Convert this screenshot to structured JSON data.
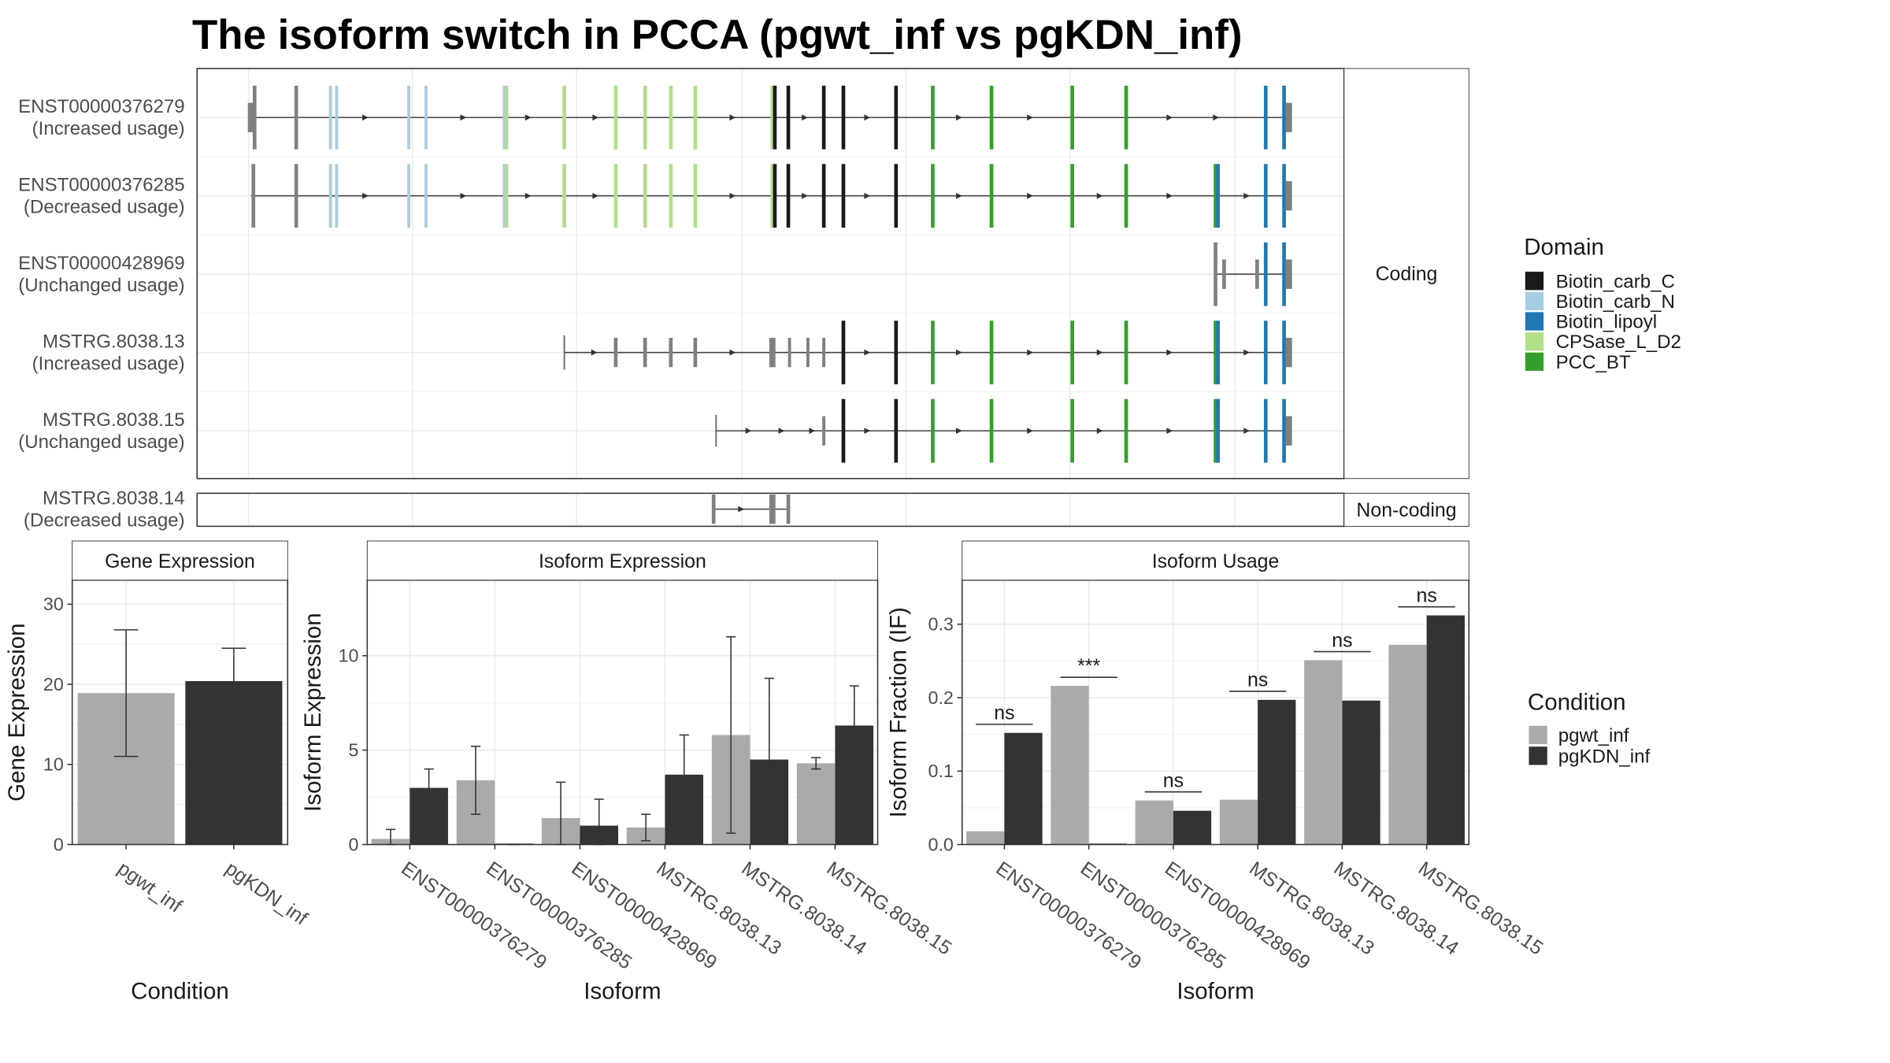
{
  "title": "The isoform switch in PCCA (pgwt_inf vs pgKDN_inf)",
  "colors": {
    "Biotin_carb_C": "#1a1a1a",
    "Biotin_carb_N": "#a6cee3",
    "Biotin_lipoyl": "#1f78b4",
    "CPSase_L_D2": "#b2df8a",
    "PCC_BT": "#33a02c",
    "noncoding_exon": "#808080",
    "pgwt_inf": "#aaaaaa",
    "pgKDN_inf": "#333333",
    "panel_border": "#333333",
    "strip_bg": "#ffffff",
    "grid": "#ebebeb"
  },
  "structure": {
    "facet_coding": "Coding",
    "facet_noncoding": "Non-coding",
    "domain_legend_title": "Domain",
    "domains": [
      "Biotin_carb_C",
      "Biotin_carb_N",
      "Biotin_lipoyl",
      "CPSase_L_D2",
      "PCC_BT"
    ],
    "isoforms": [
      {
        "id": "ENST00000376279",
        "usage": "(Increased usage)",
        "coding": true
      },
      {
        "id": "ENST00000376285",
        "usage": "(Decreased usage)",
        "coding": true
      },
      {
        "id": "ENST00000428969",
        "usage": "(Unchanged usage)",
        "coding": true
      },
      {
        "id": "MSTRG.8038.13",
        "usage": "(Increased usage)",
        "coding": true
      },
      {
        "id": "MSTRG.8038.15",
        "usage": "(Unchanged usage)",
        "coding": true
      },
      {
        "id": "MSTRG.8038.14",
        "usage": "(Decreased usage)",
        "coding": false
      }
    ]
  },
  "chart_data": [
    {
      "type": "bar",
      "title": "Gene Expression",
      "xlabel": "Condition",
      "ylabel": "Gene Expression",
      "categories": [
        "pgwt_inf",
        "pgKDN_inf"
      ],
      "values": [
        18.9,
        20.4
      ],
      "error_low": [
        11.0,
        16.3
      ],
      "error_high": [
        26.8,
        24.5
      ],
      "ylim": [
        0,
        33
      ],
      "yticks": [
        0,
        10,
        20,
        30
      ],
      "grid": true
    },
    {
      "type": "bar",
      "title": "Isoform Expression",
      "xlabel": "Isoform",
      "ylabel": "Isoform Expression",
      "categories": [
        "ENST00000376279",
        "ENST00000376285",
        "ENST00000428969",
        "MSTRG.8038.13",
        "MSTRG.8038.14",
        "MSTRG.8038.15"
      ],
      "series": [
        {
          "name": "pgwt_inf",
          "values": [
            0.3,
            3.4,
            1.4,
            0.9,
            5.8,
            4.3
          ],
          "error_low": [
            0.0,
            1.6,
            0.0,
            0.2,
            0.6,
            4.0
          ],
          "error_high": [
            0.8,
            5.2,
            3.3,
            1.6,
            11.0,
            4.6
          ]
        },
        {
          "name": "pgKDN_inf",
          "values": [
            3.0,
            0.0,
            1.0,
            3.7,
            4.5,
            6.3
          ],
          "error_low": [
            2.0,
            0.0,
            0.0,
            2.6,
            0.2,
            4.2
          ],
          "error_high": [
            4.0,
            0.0,
            2.4,
            5.8,
            8.8,
            8.4
          ]
        }
      ],
      "ylim": [
        0,
        14
      ],
      "yticks": [
        0,
        5,
        10
      ],
      "grid": true
    },
    {
      "type": "bar",
      "title": "Isoform Usage",
      "xlabel": "Isoform",
      "ylabel": "Isoform Fraction (IF)",
      "categories": [
        "ENST00000376279",
        "ENST00000376285",
        "ENST00000428969",
        "MSTRG.8038.13",
        "MSTRG.8038.14",
        "MSTRG.8038.15"
      ],
      "series": [
        {
          "name": "pgwt_inf",
          "values": [
            0.018,
            0.216,
            0.06,
            0.061,
            0.251,
            0.272
          ]
        },
        {
          "name": "pgKDN_inf",
          "values": [
            0.152,
            0.0,
            0.046,
            0.197,
            0.196,
            0.312
          ]
        }
      ],
      "significance": [
        "ns",
        "***",
        "ns",
        "ns",
        "ns",
        "ns"
      ],
      "ylim": [
        0,
        0.36
      ],
      "yticks": [
        0.0,
        0.1,
        0.2,
        0.3
      ],
      "grid": true
    }
  ],
  "condition_legend": {
    "title": "Condition",
    "items": [
      "pgwt_inf",
      "pgKDN_inf"
    ]
  }
}
